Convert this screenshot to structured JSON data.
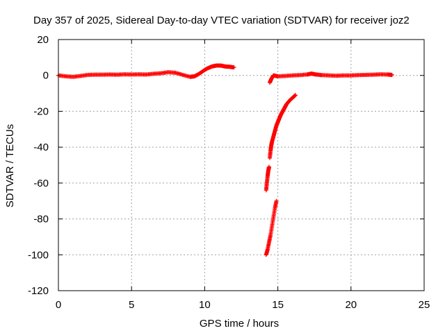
{
  "chart_data": {
    "type": "scatter",
    "title": "Day 357 of 2025, Sidereal Day-to-day VTEC variation (SDTVAR) for receiver joz2",
    "xlabel": "GPS time / hours",
    "ylabel": "SDTVAR / TECUs",
    "xlim": [
      0,
      25
    ],
    "ylim": [
      -120,
      20
    ],
    "xticks": [
      0,
      5,
      10,
      15,
      20,
      25
    ],
    "yticks": [
      -120,
      -100,
      -80,
      -60,
      -40,
      -20,
      0,
      20
    ],
    "grid": true,
    "legend": "none",
    "marker": "+",
    "color": "#ff0000",
    "series": [
      {
        "x": [
          0.0,
          0.5,
          1.0,
          1.5,
          2.0,
          2.5,
          3.0,
          3.5,
          4.0,
          4.5,
          5.0,
          5.5,
          6.0,
          6.5,
          7.0,
          7.5,
          8.0,
          8.5,
          9.0,
          9.3,
          9.6,
          9.9,
          10.2,
          10.5,
          10.8,
          11.1,
          11.4,
          11.7,
          12.0
        ],
        "y": [
          0,
          -0.5,
          -0.8,
          -0.3,
          0.3,
          0.4,
          0.4,
          0.5,
          0.4,
          0.6,
          0.5,
          0.6,
          0.5,
          0.9,
          1.2,
          1.8,
          1.5,
          0.3,
          -0.8,
          -0.5,
          0.8,
          2.5,
          4.0,
          5.0,
          5.5,
          5.5,
          5.0,
          4.8,
          4.5
        ]
      },
      {
        "x": [
          14.2,
          14.25,
          14.3,
          14.35,
          14.4
        ],
        "y": [
          -64,
          -60,
          -56,
          -53,
          -51
        ]
      },
      {
        "x": [
          14.2,
          14.3,
          14.4,
          14.5,
          14.6,
          14.7,
          14.8,
          14.9
        ],
        "y": [
          -100,
          -97,
          -93,
          -89,
          -84,
          -79,
          -74,
          -70
        ]
      },
      {
        "x": [
          14.45,
          14.5,
          14.55,
          14.6,
          14.7,
          14.8,
          14.9,
          15.0,
          15.1,
          15.2,
          15.3,
          15.4,
          15.5,
          15.6,
          15.8,
          16.0,
          16.2
        ],
        "y": [
          -46,
          -42,
          -39,
          -37,
          -34,
          -31,
          -28,
          -26,
          -24,
          -22,
          -20.5,
          -19,
          -17.5,
          -16,
          -14,
          -12.5,
          -11
        ]
      },
      {
        "x": [
          14.45,
          14.55,
          14.7,
          15.0,
          15.5,
          16.0,
          16.5,
          17.0,
          17.3,
          17.6,
          18.0,
          18.5,
          19.0,
          19.5,
          20.0,
          20.5,
          21.0,
          21.5,
          22.0,
          22.5,
          22.8
        ],
        "y": [
          -4,
          -2,
          0,
          -0.5,
          -0.3,
          0.0,
          0.2,
          0.5,
          1.0,
          0.5,
          0.2,
          0.0,
          -0.2,
          0.0,
          0.0,
          0.2,
          0.3,
          0.4,
          0.6,
          0.5,
          0.3
        ]
      }
    ]
  }
}
